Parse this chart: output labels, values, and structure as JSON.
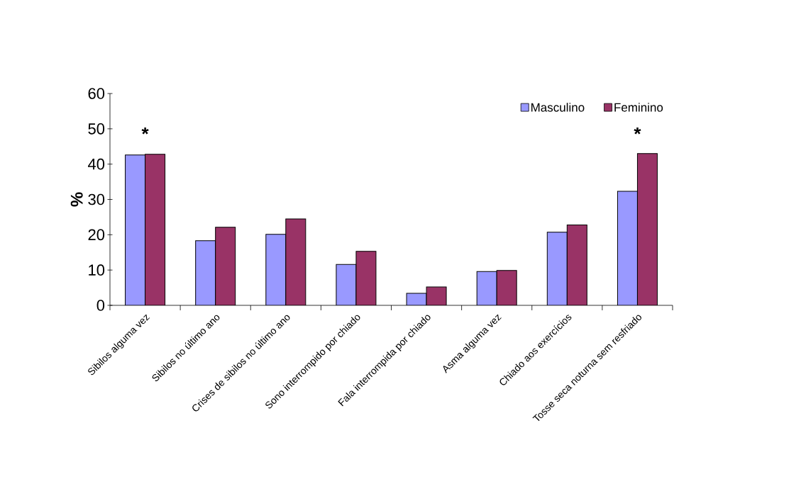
{
  "chart_data": {
    "type": "bar",
    "ylabel": "%",
    "categories": [
      "Sibilos alguma vez",
      "Sibilos no último ano",
      "Crises de sibilos no último ano",
      "Sono interrompido por chiado",
      "Fala interrompida por chiado",
      "Asma alguma vez",
      "Chiado aos exercícios",
      "Tosse seca noturna sem resfriado"
    ],
    "series": [
      {
        "name": "Masculino",
        "color": "#9999ff",
        "values": [
          42.6,
          18.3,
          20.1,
          11.6,
          3.4,
          9.6,
          20.7,
          32.3
        ]
      },
      {
        "name": "Feminino",
        "color": "#993366",
        "values": [
          42.8,
          22.1,
          24.5,
          15.3,
          5.2,
          9.9,
          22.8,
          43.0
        ]
      }
    ],
    "ylim": [
      0,
      60
    ],
    "yticks": [
      0,
      10,
      20,
      30,
      40,
      50,
      60
    ],
    "grid": false,
    "legend": "top right",
    "annotations": [
      "*",
      "*"
    ]
  }
}
